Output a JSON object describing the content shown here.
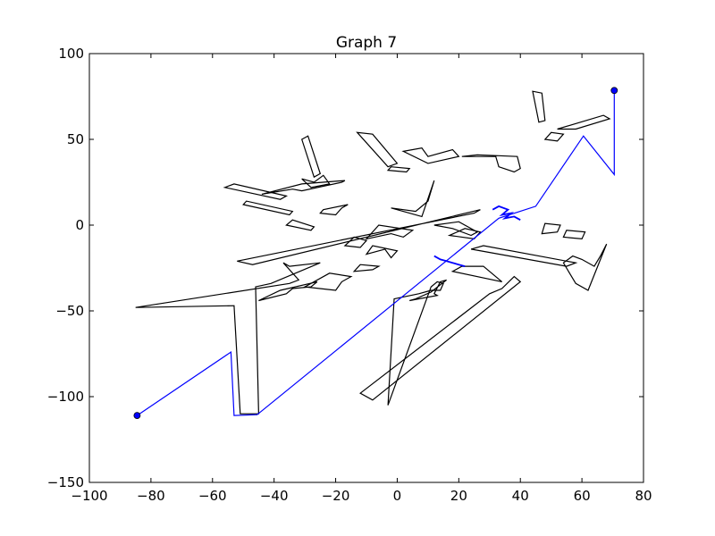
{
  "chart_data": {
    "type": "line",
    "title": "Graph 7",
    "xlabel": "",
    "ylabel": "",
    "xlim": [
      -100,
      80
    ],
    "ylim": [
      -150,
      100
    ],
    "grid": false,
    "x_ticks": [
      -100,
      -80,
      -60,
      -40,
      -20,
      0,
      20,
      40,
      60,
      80
    ],
    "y_ticks": [
      -150,
      -100,
      -50,
      0,
      50,
      100
    ],
    "x_tick_labels": [
      "−100",
      "−80",
      "−60",
      "−40",
      "−20",
      "0",
      "20",
      "40",
      "60",
      "80"
    ],
    "y_tick_labels": [
      "−150",
      "−100",
      "−50",
      "0",
      "50",
      "100"
    ],
    "colors": {
      "obstacles": "#000000",
      "path": "#0000ff",
      "endpoints": "#0000ff"
    },
    "path": {
      "x": [
        -84.5,
        -54,
        -53,
        -45.5,
        33,
        45,
        60.5,
        70.5,
        70.5
      ],
      "y": [
        -111,
        -74,
        -111,
        -110.5,
        4,
        11,
        52,
        29.5,
        78.5
      ]
    },
    "path_local_detail": {
      "x": [
        31,
        33,
        36,
        34,
        37,
        35,
        38,
        40
      ],
      "y": [
        9,
        11,
        9,
        6,
        7,
        4,
        5,
        3
      ]
    },
    "path_local_detail_2": {
      "x": [
        12,
        14,
        16,
        18,
        20,
        22
      ],
      "y": [
        -18,
        -20,
        -21,
        -22,
        -23,
        -24
      ]
    },
    "endpoints": {
      "x": [
        -84.5,
        70.5
      ],
      "y": [
        -111,
        78.5
      ]
    },
    "obstacles": [
      {
        "x": [
          -85,
          -35,
          -32,
          -37,
          -35,
          -25,
          -41,
          -46,
          -45,
          -51,
          -53,
          -85
        ],
        "y": [
          -48,
          -34,
          -32,
          -22,
          -24,
          -22,
          -34,
          -36,
          -110,
          -110,
          -47,
          -48
        ]
      },
      {
        "x": [
          -52,
          25,
          27,
          -47,
          -52
        ],
        "y": [
          -21,
          7,
          9,
          -23,
          -21
        ]
      },
      {
        "x": [
          -31,
          -27,
          -25,
          -29,
          -31
        ],
        "y": [
          50,
          28,
          30,
          52,
          50
        ]
      },
      {
        "x": [
          -13,
          -3,
          0,
          -8,
          -13
        ],
        "y": [
          54,
          34,
          36,
          53,
          54
        ]
      },
      {
        "x": [
          -3,
          3,
          4,
          -2,
          -3
        ],
        "y": [
          32,
          31,
          33,
          34,
          32
        ]
      },
      {
        "x": [
          21,
          32,
          33,
          38,
          40,
          39,
          26,
          21
        ],
        "y": [
          40,
          40,
          34,
          31,
          33,
          40,
          41,
          40
        ]
      },
      {
        "x": [
          -12,
          30,
          34,
          38,
          40,
          -8,
          -12
        ],
        "y": [
          -98,
          -40,
          -37,
          -30,
          -33,
          -102,
          -98
        ]
      },
      {
        "x": [
          4,
          13,
          12,
          14,
          16,
          11,
          6,
          4
        ],
        "y": [
          -44,
          -41,
          -40,
          -33,
          -32,
          -39,
          -43,
          -44
        ]
      },
      {
        "x": [
          -1,
          7,
          11,
          14,
          15,
          13,
          11,
          -3,
          -1
        ],
        "y": [
          -43,
          -40,
          -38,
          -38,
          -34,
          -33,
          -36,
          -105,
          -43
        ]
      },
      {
        "x": [
          44,
          47,
          48,
          46,
          44
        ],
        "y": [
          78,
          77,
          61,
          60,
          78
        ]
      },
      {
        "x": [
          52,
          67,
          69,
          58,
          55,
          52
        ],
        "y": [
          56,
          64,
          62,
          56,
          56,
          56
        ]
      },
      {
        "x": [
          54,
          57,
          60,
          64,
          66,
          68,
          62,
          58,
          56,
          54
        ],
        "y": [
          -22,
          -18,
          -20,
          -24,
          -18,
          -11,
          -38,
          -34,
          -28,
          -22
        ]
      },
      {
        "x": [
          24,
          55,
          58,
          28,
          24
        ],
        "y": [
          -14,
          -24,
          -22,
          -12,
          -14
        ]
      },
      {
        "x": [
          18,
          34,
          28,
          21,
          18
        ],
        "y": [
          -27,
          -33,
          -24,
          -24,
          -27
        ]
      },
      {
        "x": [
          -56,
          -38,
          -36,
          -53,
          -56
        ],
        "y": [
          22,
          15,
          17,
          24,
          22
        ]
      },
      {
        "x": [
          -50,
          -35,
          -34,
          -49,
          -50
        ],
        "y": [
          12,
          6,
          8,
          14,
          12
        ]
      },
      {
        "x": [
          -36,
          -28,
          -27,
          -34,
          -36
        ],
        "y": [
          0,
          -3,
          -1,
          3,
          0
        ]
      },
      {
        "x": [
          -44,
          -34,
          -31,
          -18,
          -17,
          -31,
          -44
        ],
        "y": [
          18,
          21,
          20,
          25,
          26,
          24,
          18
        ]
      },
      {
        "x": [
          -14,
          -8,
          -6,
          -12,
          -14
        ],
        "y": [
          -27,
          -26,
          -24,
          -23,
          -27
        ]
      },
      {
        "x": [
          -10,
          -2,
          2,
          5,
          -6,
          -10
        ],
        "y": [
          -8,
          -5,
          -7,
          -3,
          0,
          -8
        ]
      },
      {
        "x": [
          -2,
          6,
          10,
          12,
          8,
          -2
        ],
        "y": [
          10,
          8,
          14,
          26,
          5,
          10
        ]
      },
      {
        "x": [
          12,
          18,
          24,
          26,
          20,
          12
        ],
        "y": [
          0,
          -2,
          -6,
          -4,
          2,
          0
        ]
      },
      {
        "x": [
          17,
          25,
          27,
          22,
          17
        ],
        "y": [
          -6,
          -8,
          -4,
          -2,
          -6
        ]
      },
      {
        "x": [
          -45,
          -36,
          -34,
          -28,
          -26,
          -38,
          -45
        ],
        "y": [
          -44,
          -40,
          -37,
          -36,
          -33,
          -38,
          -44
        ]
      },
      {
        "x": [
          -30,
          -20,
          -18,
          -15,
          -22,
          -30
        ],
        "y": [
          -36,
          -38,
          -33,
          -30,
          -28,
          -36
        ]
      },
      {
        "x": [
          47,
          52,
          53,
          48,
          47
        ],
        "y": [
          -5,
          -4,
          0,
          1,
          -5
        ]
      },
      {
        "x": [
          54,
          60,
          61,
          55,
          54
        ],
        "y": [
          -7,
          -8,
          -4,
          -3,
          -7
        ]
      },
      {
        "x": [
          48,
          52,
          54,
          50,
          48
        ],
        "y": [
          50,
          49,
          53,
          54,
          50
        ]
      },
      {
        "x": [
          2,
          8,
          10,
          18,
          20,
          10,
          2
        ],
        "y": [
          43,
          45,
          40,
          44,
          40,
          36,
          43
        ]
      },
      {
        "x": [
          -25,
          -20,
          -18,
          -16,
          -24,
          -25
        ],
        "y": [
          7,
          6,
          10,
          12,
          9,
          7
        ]
      },
      {
        "x": [
          -31,
          -27,
          -24,
          -22,
          -28,
          -31
        ],
        "y": [
          27,
          25,
          29,
          24,
          22,
          27
        ]
      },
      {
        "x": [
          -10,
          -4,
          -2,
          0,
          -8,
          -10
        ],
        "y": [
          -17,
          -14,
          -19,
          -15,
          -12,
          -17
        ]
      },
      {
        "x": [
          -17,
          -12,
          -10,
          -14,
          -17
        ],
        "y": [
          -12,
          -13,
          -9,
          -7,
          -12
        ]
      }
    ]
  }
}
